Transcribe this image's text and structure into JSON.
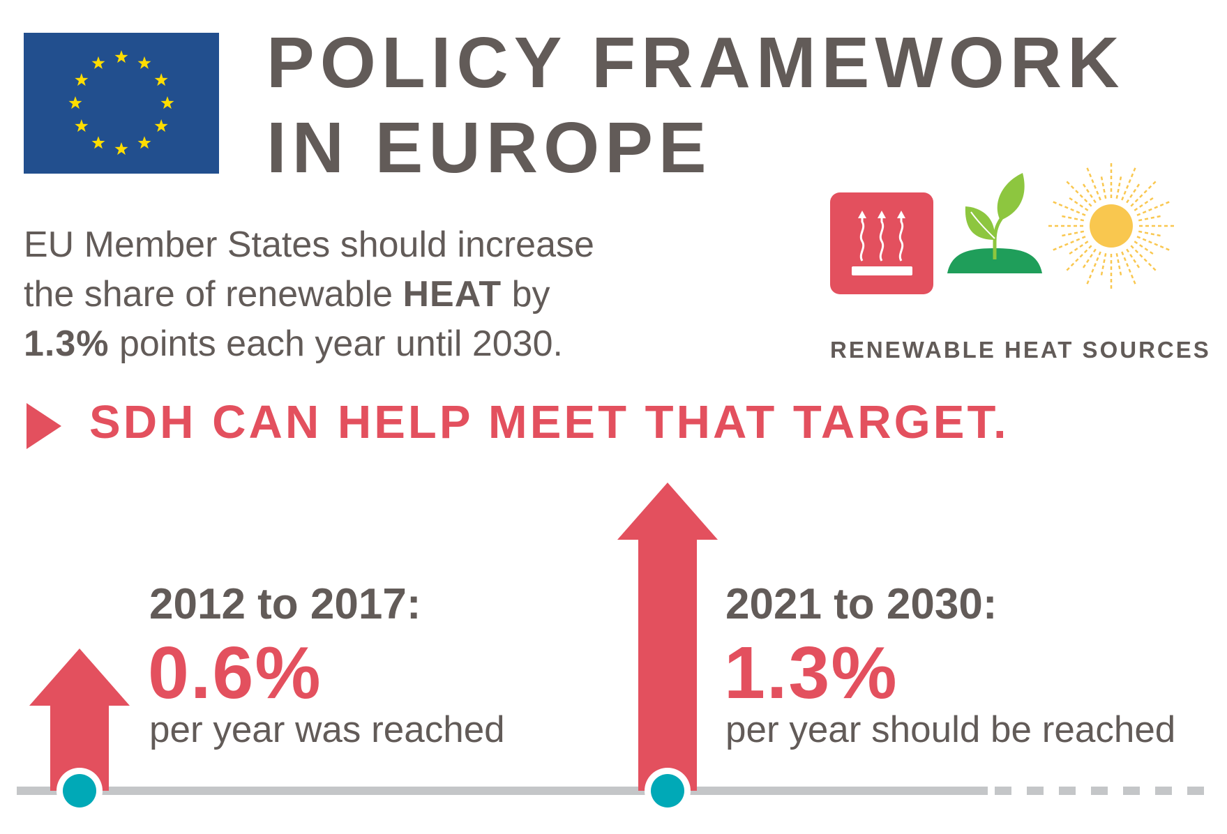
{
  "header": {
    "title_line_1": "POLICY FRAMEWORK",
    "title_line_2": "IN EUROPE"
  },
  "intro": {
    "part_1": "EU Member States should increase the share of renewable ",
    "emphasis_heat": "HEAT",
    "part_2": " by ",
    "emphasis_rate": "1.3%",
    "part_3": " points each year until 2030."
  },
  "sources": {
    "label": "RENEWABLE HEAT SOURCES",
    "icons": [
      "heating-icon",
      "plant-sprout-icon",
      "sun-icon"
    ]
  },
  "cta": {
    "text": "SDH CAN HELP MEET THAT TARGET."
  },
  "milestones": [
    {
      "period": "2012 to 2017:",
      "rate": "0.6%",
      "rate_value": 0.6,
      "note": "per year was reached"
    },
    {
      "period": "2021 to 2030:",
      "rate": "1.3%",
      "rate_value": 1.3,
      "note": "per year should be reached"
    }
  ],
  "colors": {
    "eu_blue": "#224f8e",
    "eu_star": "#ffdd00",
    "accent_red": "#e3505e",
    "text_gray": "#625b58",
    "plant_green": "#8dc63f",
    "ground_green": "#1f9e5a",
    "sun_yellow": "#f9c74f",
    "timeline_gray": "#c4c6c8",
    "marker_teal": "#00a9b7"
  }
}
